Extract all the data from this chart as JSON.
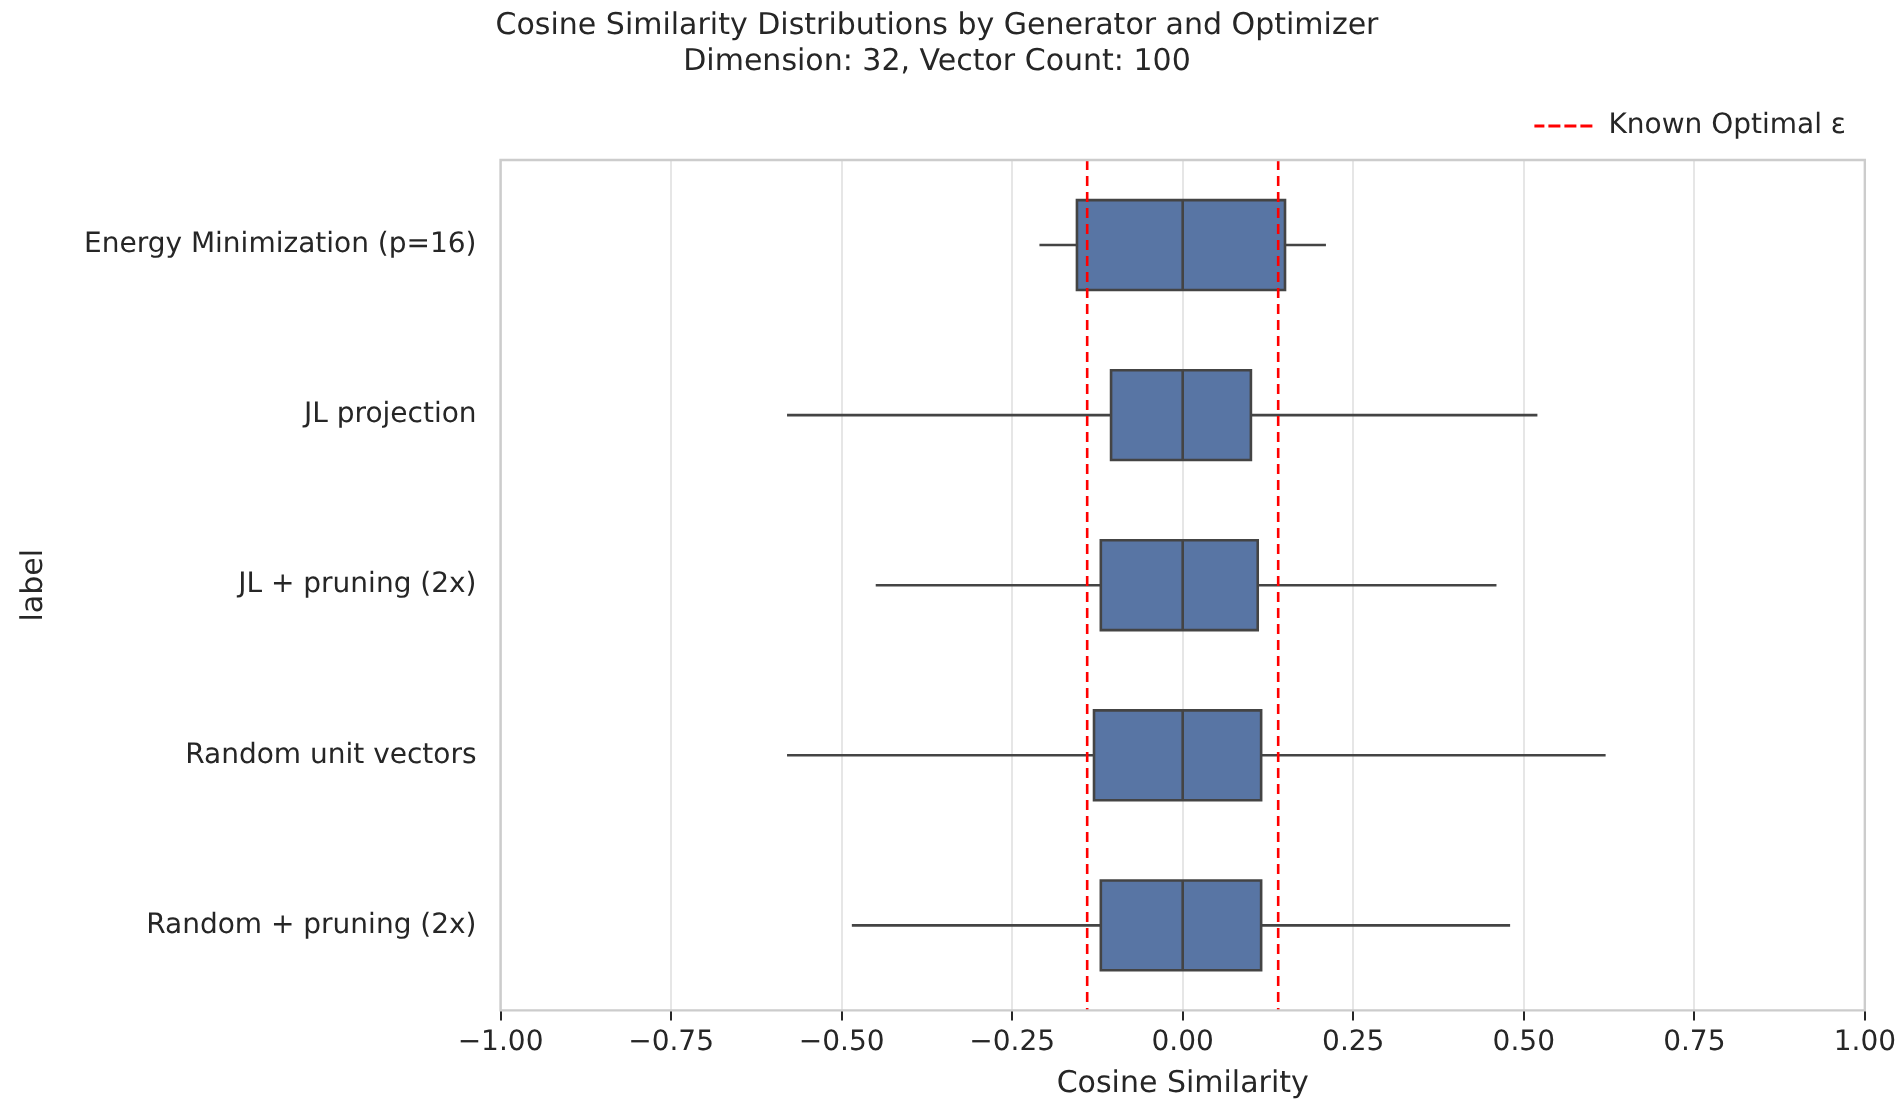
{
  "chart_data": {
    "type": "box",
    "title": "Cosine Similarity Distributions by Generator and Optimizer",
    "subtitle": "Dimension: 32, Vector Count: 100",
    "xlabel": "Cosine Similarity",
    "ylabel": "label",
    "orientation": "horizontal",
    "categories": [
      "Energy Minimization (p=16)",
      "JL projection",
      "JL + pruning (2x)",
      "Random unit vectors",
      "Random + pruning (2x)"
    ],
    "series": [
      {
        "color": "#5875a4",
        "boxes": [
          {
            "low": -0.21,
            "q1": -0.155,
            "median": 0.0,
            "q3": 0.15,
            "high": 0.21
          },
          {
            "low": -0.58,
            "q1": -0.105,
            "median": 0.0,
            "q3": 0.1,
            "high": 0.52
          },
          {
            "low": -0.45,
            "q1": -0.12,
            "median": 0.0,
            "q3": 0.11,
            "high": 0.46
          },
          {
            "low": -0.58,
            "q1": -0.13,
            "median": 0.0,
            "q3": 0.115,
            "high": 0.62
          },
          {
            "low": -0.485,
            "q1": -0.12,
            "median": 0.0,
            "q3": 0.115,
            "high": 0.48
          }
        ]
      }
    ],
    "xlim": [
      -1,
      1
    ],
    "xticks": [
      {
        "value": -1,
        "label": "−1.00"
      },
      {
        "value": -0.75,
        "label": "−0.75"
      },
      {
        "value": -0.5,
        "label": "−0.50"
      },
      {
        "value": -0.25,
        "label": "−0.25"
      },
      {
        "value": 0,
        "label": "0.00"
      },
      {
        "value": 0.25,
        "label": "0.25"
      },
      {
        "value": 0.5,
        "label": "0.50"
      },
      {
        "value": 0.75,
        "label": "0.75"
      },
      {
        "value": 1,
        "label": "1.00"
      }
    ],
    "ref_lines": [
      {
        "axis": "x",
        "value": -0.14,
        "label": "Known Optimal ε",
        "color": "#ff0000",
        "line_style": "dashed"
      },
      {
        "axis": "x",
        "value": 0.14,
        "color": "#ff0000",
        "line_style": "dashed"
      }
    ],
    "grid": "x",
    "legend": "top right"
  }
}
